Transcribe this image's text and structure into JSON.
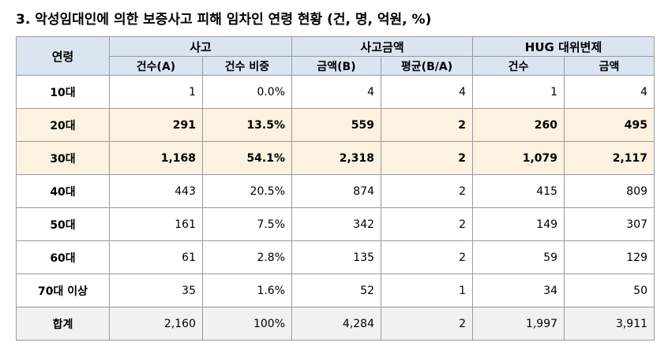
{
  "title": "3. 악성임대인에 의한 보증사고 피해 임차인 연령 현황 (건, 명, 억원, %)",
  "header": {
    "age_label": "연령",
    "groups": [
      "사고",
      "사고금액",
      "HUG 대위변제"
    ],
    "subcolumns": [
      "건수(A)",
      "건수 비중",
      "금액(B)",
      "평균(B/A)",
      "건수",
      "금액"
    ]
  },
  "rows": [
    {
      "label": "10대",
      "cells": [
        "1",
        "0.0%",
        "4",
        "4",
        "1",
        "4"
      ]
    },
    {
      "label": "20대",
      "cells": [
        "291",
        "13.5%",
        "559",
        "2",
        "260",
        "495"
      ]
    },
    {
      "label": "30대",
      "cells": [
        "1,168",
        "54.1%",
        "2,318",
        "2",
        "1,079",
        "2,117"
      ]
    },
    {
      "label": "40대",
      "cells": [
        "443",
        "20.5%",
        "874",
        "2",
        "415",
        "809"
      ]
    },
    {
      "label": "50대",
      "cells": [
        "161",
        "7.5%",
        "342",
        "2",
        "149",
        "307"
      ]
    },
    {
      "label": "60대",
      "cells": [
        "61",
        "2.8%",
        "135",
        "2",
        "59",
        "129"
      ]
    },
    {
      "label": "70대 이상",
      "cells": [
        "35",
        "1.6%",
        "52",
        "1",
        "34",
        "50"
      ]
    },
    {
      "label": "합계",
      "cells": [
        "2,160",
        "100%",
        "4,284",
        "2",
        "1,997",
        "3,911"
      ]
    }
  ],
  "colors": {
    "header_bg": "#dbe5f1",
    "highlight_bg": "#fdf1e1",
    "total_bg": "#f1f1f1",
    "border": "#9a9a9a"
  }
}
